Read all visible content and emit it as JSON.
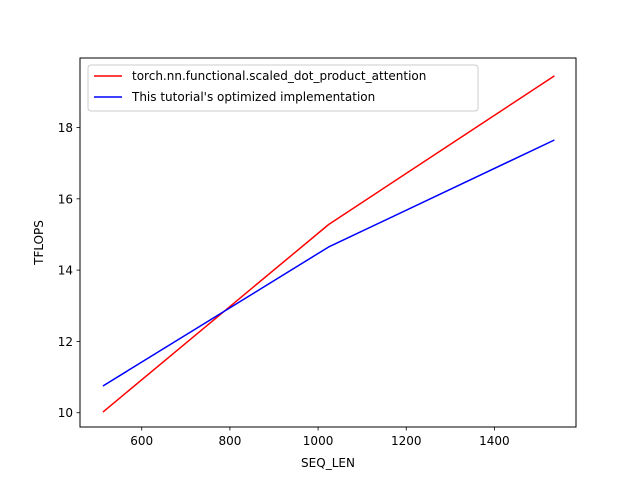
{
  "chart_data": {
    "type": "line",
    "xlabel": "SEQ_LEN",
    "ylabel": "TFLOPS",
    "xlim": [
      460,
      1585
    ],
    "ylim": [
      9.6,
      19.95
    ],
    "xticks": [
      600,
      800,
      1000,
      1200,
      1400
    ],
    "yticks": [
      10,
      12,
      14,
      16,
      18
    ],
    "grid": false,
    "legend_position": "top-left",
    "series": [
      {
        "name": "torch.nn.functional.scaled_dot_product_attention",
        "color": "#ff0000",
        "x": [
          512,
          1024,
          1536
        ],
        "y": [
          10.02,
          15.28,
          19.45
        ]
      },
      {
        "name": "This tutorial's optimized implementation",
        "color": "#0000ff",
        "x": [
          512,
          1024,
          1536
        ],
        "y": [
          10.75,
          14.65,
          17.65
        ]
      }
    ]
  }
}
